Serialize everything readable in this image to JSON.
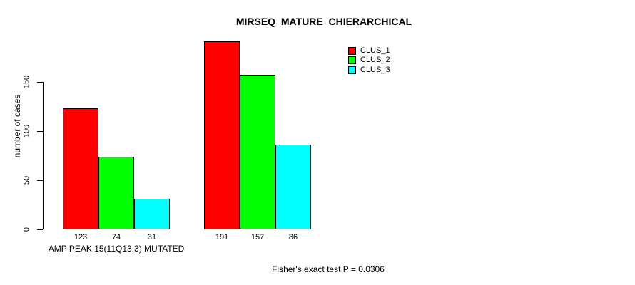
{
  "title": "MIRSEQ_MATURE_CHIERARCHICAL",
  "chart_data": {
    "type": "bar",
    "title": "MIRSEQ_MATURE_CHIERARCHICAL",
    "ylabel": "number of cases",
    "xlabel": "",
    "axis_ticks": [
      0,
      50,
      100,
      150
    ],
    "ylim": [
      0,
      195
    ],
    "grid": false,
    "legend_position": "top-right",
    "group_labels": [
      "AMP PEAK 15(11Q13.3) MUTATED",
      ""
    ],
    "series": [
      {
        "name": "CLUS_1",
        "color": "#ff0000",
        "values": [
          123,
          191
        ]
      },
      {
        "name": "CLUS_2",
        "color": "#00ff00",
        "values": [
          74,
          157
        ]
      },
      {
        "name": "CLUS_3",
        "color": "#00ffff",
        "values": [
          31,
          86
        ]
      }
    ],
    "bar_value_labels_shown": true,
    "annotation": "Fisher's exact test P = 0.0306"
  }
}
